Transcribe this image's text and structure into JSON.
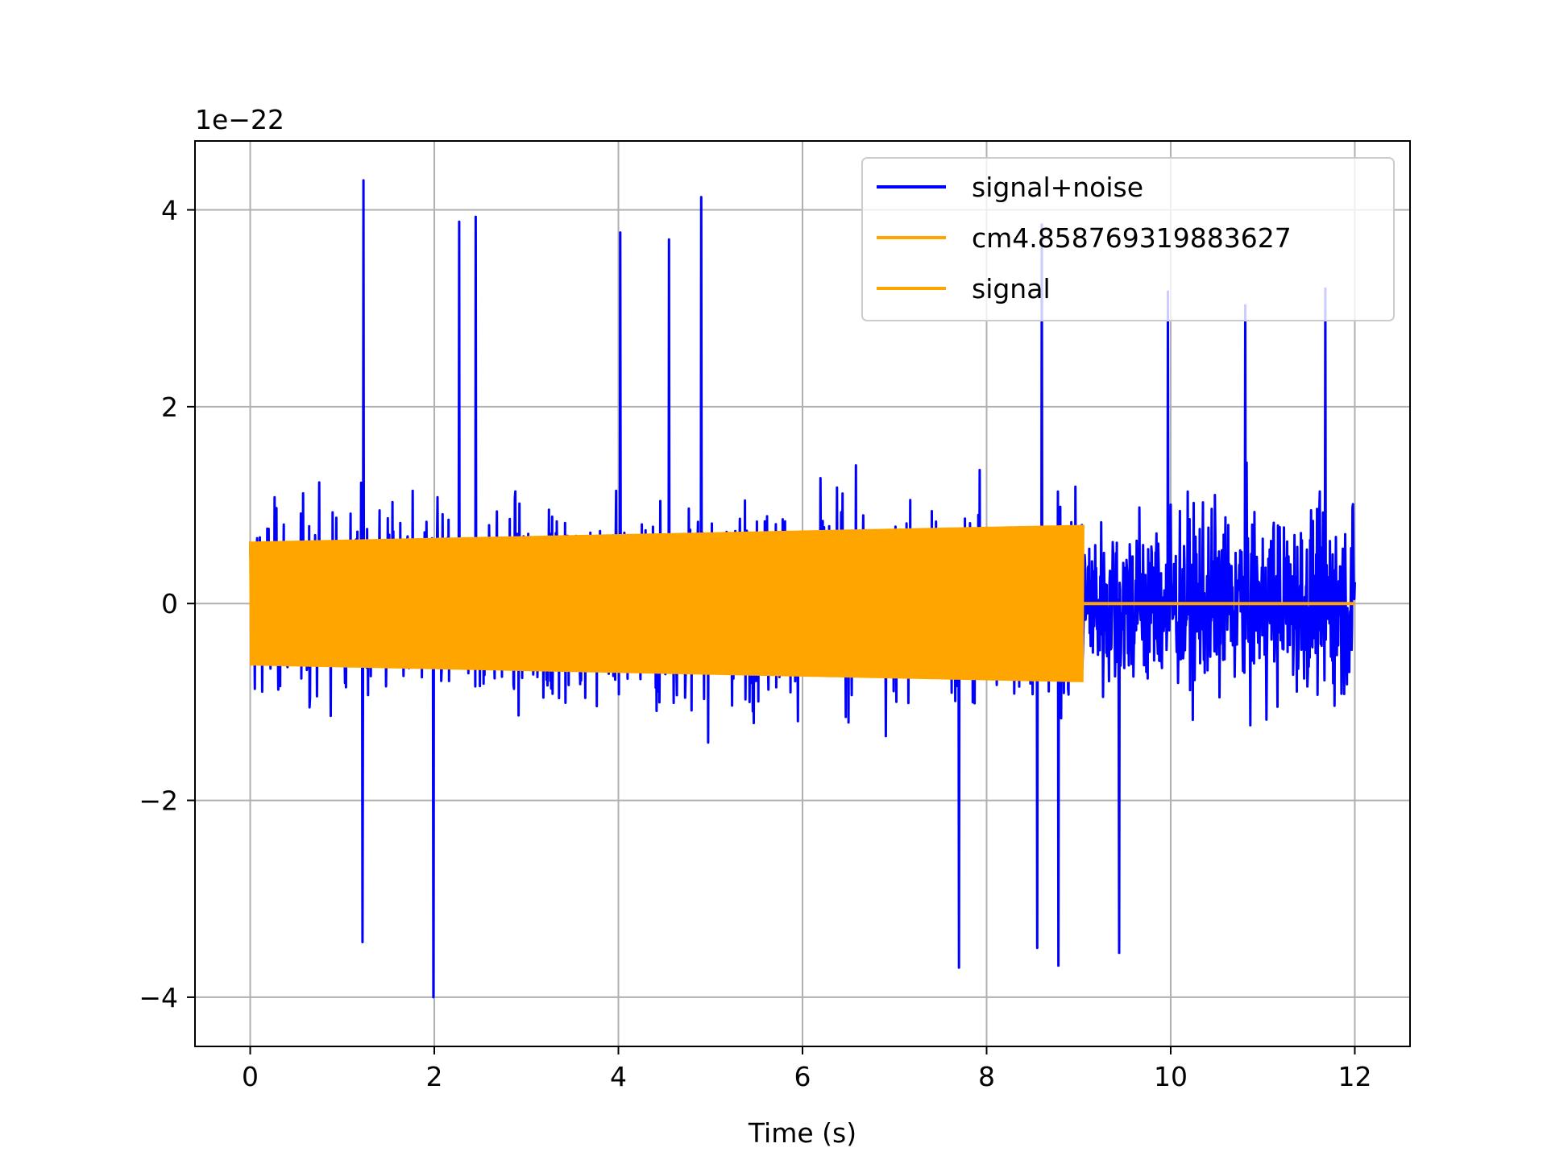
{
  "chart_data": {
    "type": "line",
    "title": "",
    "xlabel": "Time (s)",
    "ylabel": "",
    "y_offset_label": "1e−22",
    "xlim": [
      -0.6,
      12.6
    ],
    "ylim": [
      -4.5,
      4.7
    ],
    "xticks": [
      0,
      2,
      4,
      6,
      8,
      10,
      12
    ],
    "xtick_labels": [
      "0",
      "2",
      "4",
      "6",
      "8",
      "10",
      "12"
    ],
    "yticks": [
      -4,
      -2,
      0,
      2,
      4
    ],
    "ytick_labels": [
      "−4",
      "−2",
      "0",
      "2",
      "4"
    ],
    "grid": true,
    "legend_position": "top-right",
    "series": [
      {
        "name": "signal+noise",
        "color": "#0000ff",
        "x_range": [
          0,
          12
        ],
        "typical_envelope": [
          -1.5,
          1.5
        ],
        "peaks": [
          {
            "x": 1.23,
            "y": 4.3
          },
          {
            "x": 4.9,
            "y": 4.13
          },
          {
            "x": 2.45,
            "y": 3.93
          },
          {
            "x": 2.27,
            "y": 3.88
          },
          {
            "x": 8.6,
            "y": 3.85
          },
          {
            "x": 4.02,
            "y": 3.77
          },
          {
            "x": 4.55,
            "y": 3.7
          },
          {
            "x": 11.68,
            "y": 3.2
          },
          {
            "x": 9.97,
            "y": 3.17
          },
          {
            "x": 10.81,
            "y": 3.03
          },
          {
            "x": 1.99,
            "y": -4.0
          },
          {
            "x": 1.22,
            "y": -3.44
          },
          {
            "x": 7.7,
            "y": -3.7
          },
          {
            "x": 8.78,
            "y": -3.68
          },
          {
            "x": 8.55,
            "y": -3.5
          },
          {
            "x": 9.44,
            "y": -3.55
          }
        ]
      },
      {
        "name": "cm4.858769319883627",
        "color": "#ffa500",
        "x_range": [
          0,
          9.05
        ],
        "amplitude_start": 0.63,
        "amplitude_end": 0.8,
        "flat_after": 9.05
      },
      {
        "name": "signal",
        "color": "#ffa500",
        "x_range": [
          0,
          12
        ],
        "flat_value": 0
      }
    ]
  }
}
